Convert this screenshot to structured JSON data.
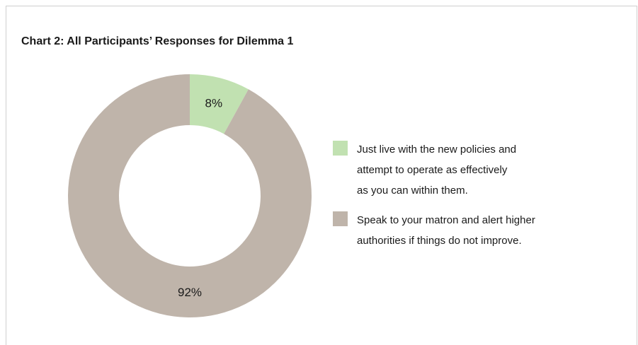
{
  "title": "Chart 2: All Participants’ Responses for Dilemma 1",
  "colors": {
    "green": "#c1e1b1",
    "taupe": "#bfb4aa",
    "text": "#1a1a1a",
    "frame": "#cfcfcf"
  },
  "chart_data": {
    "type": "pie",
    "donut": true,
    "title": "Chart 2: All Participants’ Responses for Dilemma 1",
    "legend_position": "right",
    "slices": [
      {
        "name": "Just live with the new policies and attempt to operate as effectively as you can within them.",
        "value": 8,
        "label": "8%",
        "color": "#c1e1b1"
      },
      {
        "name": "Speak to your matron and alert higher authorities if things do not improve.",
        "value": 92,
        "label": "92%",
        "color": "#bfb4aa"
      }
    ]
  },
  "legend": [
    {
      "lines": [
        "Just live with the new policies and",
        "attempt to operate as effectively",
        "as you can within them."
      ],
      "color": "#c1e1b1"
    },
    {
      "lines": [
        "Speak to your matron and alert higher",
        "authorities if things do not improve."
      ],
      "color": "#bfb4aa"
    }
  ]
}
